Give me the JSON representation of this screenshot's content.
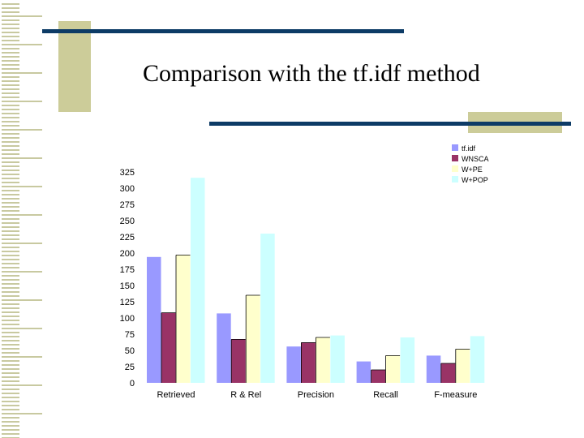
{
  "slide": {
    "title": "Comparison with the tf.idf method"
  },
  "colors": {
    "rule_line": "#0d3b66",
    "accent_block": "#cccc99",
    "border_stripe": "#c8c9a0"
  },
  "chart_data": {
    "type": "bar",
    "title": "",
    "xlabel": "",
    "ylabel": "",
    "categories": [
      "Retrieved",
      "R & Rel",
      "Precision",
      "Recall",
      "F-measure"
    ],
    "series": [
      {
        "name": "tf.idf",
        "color": "#9999ff",
        "values": [
          194,
          107,
          56,
          33,
          42
        ]
      },
      {
        "name": "WNSCA",
        "color": "#993366",
        "values": [
          108,
          67,
          62,
          20,
          30
        ]
      },
      {
        "name": "W+PE",
        "color": "#ffffcc",
        "values": [
          197,
          135,
          70,
          42,
          52
        ]
      },
      {
        "name": "W+POP",
        "color": "#ccffff",
        "values": [
          316,
          230,
          73,
          70,
          72
        ]
      }
    ],
    "y_ticks": [
      0,
      25,
      50,
      75,
      100,
      125,
      150,
      175,
      200,
      225,
      250,
      275,
      300,
      325
    ],
    "ylim": [
      0,
      325
    ],
    "grid": false,
    "legend_position": "top-right"
  }
}
